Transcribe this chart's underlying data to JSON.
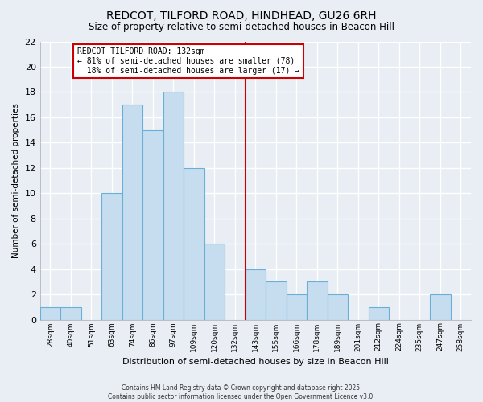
{
  "title": "REDCOT, TILFORD ROAD, HINDHEAD, GU26 6RH",
  "subtitle": "Size of property relative to semi-detached houses in Beacon Hill",
  "xlabel": "Distribution of semi-detached houses by size in Beacon Hill",
  "ylabel": "Number of semi-detached properties",
  "footer_line1": "Contains HM Land Registry data © Crown copyright and database right 2025.",
  "footer_line2": "Contains public sector information licensed under the Open Government Licence v3.0.",
  "bin_labels": [
    "28sqm",
    "40sqm",
    "51sqm",
    "63sqm",
    "74sqm",
    "86sqm",
    "97sqm",
    "109sqm",
    "120sqm",
    "132sqm",
    "143sqm",
    "155sqm",
    "166sqm",
    "178sqm",
    "189sqm",
    "201sqm",
    "212sqm",
    "224sqm",
    "235sqm",
    "247sqm",
    "258sqm"
  ],
  "counts": [
    1,
    1,
    0,
    10,
    17,
    15,
    18,
    12,
    6,
    0,
    4,
    3,
    2,
    3,
    2,
    0,
    1,
    0,
    0,
    2,
    0
  ],
  "marker_bin_index": 9,
  "marker_label": "REDCOT TILFORD ROAD: 132sqm",
  "pct_smaller": 81,
  "n_smaller": 78,
  "pct_larger": 18,
  "n_larger": 17,
  "bar_color": "#c5ddef",
  "bar_edge_color": "#6baed6",
  "marker_line_color": "#cc0000",
  "box_edge_color": "#cc0000",
  "background_color": "#e8eef4",
  "grid_color": "#ffffff",
  "ylim": [
    0,
    22
  ],
  "yticks": [
    0,
    2,
    4,
    6,
    8,
    10,
    12,
    14,
    16,
    18,
    20,
    22
  ],
  "title_fontsize": 10,
  "subtitle_fontsize": 8.5
}
